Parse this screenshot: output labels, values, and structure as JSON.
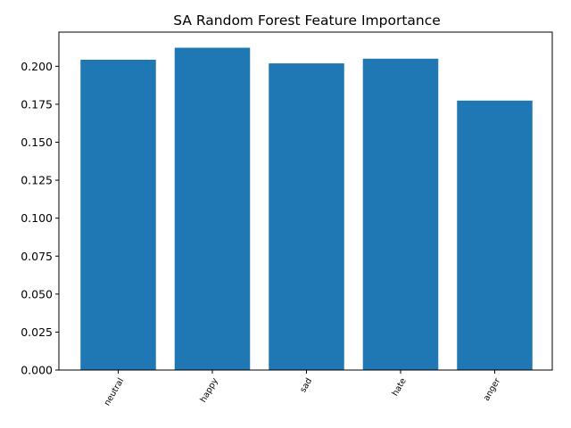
{
  "chart_data": {
    "type": "bar",
    "title": "SA Random Forest Feature Importance",
    "xlabel": "",
    "ylabel": "",
    "categories": [
      "neutral",
      "happy",
      "sad",
      "hate",
      "anger"
    ],
    "values": [
      0.2043,
      0.2122,
      0.2019,
      0.205,
      0.1774
    ],
    "ylim": [
      0,
      0.2225
    ],
    "yticks": [
      "0.000",
      "0.025",
      "0.050",
      "0.075",
      "0.100",
      "0.125",
      "0.150",
      "0.175",
      "0.200"
    ],
    "xtick_rotation": "rotated-60",
    "bar_color": "#1f77b4",
    "grid": false,
    "legend": "none"
  }
}
